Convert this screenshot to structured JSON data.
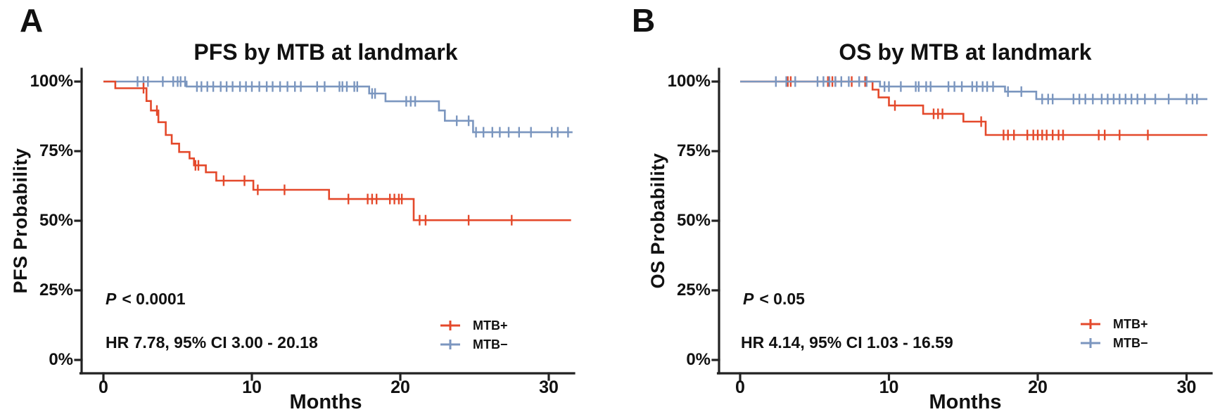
{
  "colors": {
    "mtb_plus": "#E4492B",
    "mtb_minus": "#7B96BF",
    "axis": "#222222"
  },
  "chart_data": [
    {
      "type": "line",
      "subtype": "kaplan-meier-step",
      "panel_label": "A",
      "title": "PFS by MTB at landmark",
      "xlabel": "Months",
      "ylabel": "PFS Probability",
      "xlim": [
        0,
        31.8
      ],
      "ylim": [
        0,
        100
      ],
      "grid": false,
      "legend_position": "lower right",
      "x_ticks": [
        {
          "value": 0,
          "label": "0"
        },
        {
          "value": 10,
          "label": "10"
        },
        {
          "value": 20,
          "label": "20"
        },
        {
          "value": 30,
          "label": "30"
        }
      ],
      "y_ticks": [
        {
          "value": 100,
          "label": "100%"
        },
        {
          "value": 75,
          "label": "75%"
        },
        {
          "value": 50,
          "label": "50%"
        },
        {
          "value": 25,
          "label": "25%"
        },
        {
          "value": 0,
          "label": "0%"
        }
      ],
      "annotation": {
        "p_label": "P",
        "p_rest": "< 0.0001",
        "hr_text": "HR 7.78, 95% CI 3.00 - 20.18"
      },
      "legend": [
        {
          "label": "MTB+"
        },
        {
          "label": "MTB−"
        }
      ],
      "series": [
        {
          "id": "pfs-mtb-minus",
          "name": "MTB−",
          "color": "#7B96BF",
          "end_t": 31.6,
          "levels": [
            {
              "t": 0,
              "p": 100
            },
            {
              "t": 5.6,
              "p": 98.2
            },
            {
              "t": 17.9,
              "p": 95.7
            },
            {
              "t": 19.0,
              "p": 92.9
            },
            {
              "t": 22.6,
              "p": 89.6
            },
            {
              "t": 23.0,
              "p": 85.9
            },
            {
              "t": 24.9,
              "p": 81.8
            }
          ],
          "censors": [
            [
              2.3,
              100
            ],
            [
              2.7,
              100
            ],
            [
              3.0,
              100
            ],
            [
              4.0,
              100
            ],
            [
              4.7,
              100
            ],
            [
              5.0,
              100
            ],
            [
              5.2,
              100
            ],
            [
              5.5,
              100
            ],
            [
              6.3,
              98.2
            ],
            [
              6.6,
              98.2
            ],
            [
              7.0,
              98.2
            ],
            [
              7.4,
              98.2
            ],
            [
              7.9,
              98.2
            ],
            [
              8.3,
              98.2
            ],
            [
              8.7,
              98.2
            ],
            [
              9.2,
              98.2
            ],
            [
              9.6,
              98.2
            ],
            [
              10.0,
              98.2
            ],
            [
              10.5,
              98.2
            ],
            [
              11.0,
              98.2
            ],
            [
              11.4,
              98.2
            ],
            [
              11.9,
              98.2
            ],
            [
              12.4,
              98.2
            ],
            [
              12.9,
              98.2
            ],
            [
              13.3,
              98.2
            ],
            [
              14.4,
              98.2
            ],
            [
              14.9,
              98.2
            ],
            [
              15.9,
              98.2
            ],
            [
              16.1,
              98.2
            ],
            [
              16.4,
              98.2
            ],
            [
              16.9,
              98.2
            ],
            [
              17.1,
              98.2
            ],
            [
              18.1,
              95.7
            ],
            [
              18.3,
              95.7
            ],
            [
              20.4,
              92.9
            ],
            [
              20.7,
              92.9
            ],
            [
              21.0,
              92.9
            ],
            [
              23.8,
              85.9
            ],
            [
              24.6,
              85.9
            ],
            [
              25.1,
              81.8
            ],
            [
              25.6,
              81.8
            ],
            [
              26.2,
              81.8
            ],
            [
              26.7,
              81.8
            ],
            [
              27.3,
              81.8
            ],
            [
              28.0,
              81.8
            ],
            [
              28.8,
              81.8
            ],
            [
              30.2,
              81.8
            ],
            [
              30.6,
              81.8
            ],
            [
              31.3,
              81.8
            ]
          ]
        },
        {
          "id": "pfs-mtb-plus",
          "name": "MTB+",
          "color": "#E4492B",
          "end_t": 31.5,
          "levels": [
            {
              "t": 0,
              "p": 100
            },
            {
              "t": 0.8,
              "p": 97.6
            },
            {
              "t": 2.9,
              "p": 93.0
            },
            {
              "t": 3.2,
              "p": 89.6
            },
            {
              "t": 3.7,
              "p": 85.4
            },
            {
              "t": 4.2,
              "p": 80.8
            },
            {
              "t": 4.6,
              "p": 77.7
            },
            {
              "t": 5.1,
              "p": 74.7
            },
            {
              "t": 5.8,
              "p": 72.4
            },
            {
              "t": 6.1,
              "p": 69.9
            },
            {
              "t": 6.9,
              "p": 67.4
            },
            {
              "t": 7.6,
              "p": 64.4
            },
            {
              "t": 10.1,
              "p": 61.1
            },
            {
              "t": 15.2,
              "p": 57.8
            },
            {
              "t": 20.9,
              "p": 50.2
            }
          ],
          "censors": [
            [
              2.7,
              97.6
            ],
            [
              3.6,
              89.6
            ],
            [
              6.2,
              69.9
            ],
            [
              6.4,
              69.9
            ],
            [
              8.1,
              64.4
            ],
            [
              9.5,
              64.4
            ],
            [
              10.4,
              61.1
            ],
            [
              12.2,
              61.1
            ],
            [
              16.5,
              57.8
            ],
            [
              17.8,
              57.8
            ],
            [
              18.1,
              57.8
            ],
            [
              18.4,
              57.8
            ],
            [
              19.3,
              57.8
            ],
            [
              19.6,
              57.8
            ],
            [
              19.9,
              57.8
            ],
            [
              20.1,
              57.8
            ],
            [
              21.3,
              50.2
            ],
            [
              21.7,
              50.2
            ],
            [
              24.6,
              50.2
            ],
            [
              27.5,
              50.2
            ]
          ]
        }
      ]
    },
    {
      "type": "line",
      "subtype": "kaplan-meier-step",
      "panel_label": "B",
      "title": "OS by MTB at landmark",
      "xlabel": "Months",
      "ylabel": "OS Probability",
      "xlim": [
        0,
        31.8
      ],
      "ylim": [
        0,
        100
      ],
      "grid": false,
      "legend_position": "lower right",
      "x_ticks": [
        {
          "value": 0,
          "label": "0"
        },
        {
          "value": 10,
          "label": "10"
        },
        {
          "value": 20,
          "label": "20"
        },
        {
          "value": 30,
          "label": "30"
        }
      ],
      "y_ticks": [
        {
          "value": 100,
          "label": "100%"
        },
        {
          "value": 75,
          "label": "75%"
        },
        {
          "value": 50,
          "label": "50%"
        },
        {
          "value": 25,
          "label": "25%"
        },
        {
          "value": 0,
          "label": "0%"
        }
      ],
      "annotation": {
        "p_label": "P",
        "p_rest": "< 0.05",
        "hr_text": "HR 4.14, 95% CI 1.03 - 16.59"
      },
      "legend": [
        {
          "label": "MTB+"
        },
        {
          "label": "MTB−"
        }
      ],
      "series": [
        {
          "id": "os-mtb-plus",
          "name": "MTB+",
          "color": "#E4492B",
          "end_t": 31.4,
          "levels": [
            {
              "t": 0,
              "p": 100
            },
            {
              "t": 8.9,
              "p": 97.1
            },
            {
              "t": 9.3,
              "p": 94.3
            },
            {
              "t": 10.0,
              "p": 91.4
            },
            {
              "t": 12.3,
              "p": 88.4
            },
            {
              "t": 15.0,
              "p": 85.6
            },
            {
              "t": 16.5,
              "p": 80.8
            }
          ],
          "censors": [
            [
              3.2,
              100
            ],
            [
              3.4,
              100
            ],
            [
              5.9,
              100
            ],
            [
              6.2,
              100
            ],
            [
              6.4,
              100
            ],
            [
              7.5,
              100
            ],
            [
              8.4,
              100
            ],
            [
              10.4,
              91.4
            ],
            [
              13.0,
              88.4
            ],
            [
              13.3,
              88.4
            ],
            [
              13.6,
              88.4
            ],
            [
              16.2,
              85.6
            ],
            [
              17.7,
              80.8
            ],
            [
              18.0,
              80.8
            ],
            [
              18.4,
              80.8
            ],
            [
              19.3,
              80.8
            ],
            [
              19.7,
              80.8
            ],
            [
              20.0,
              80.8
            ],
            [
              20.3,
              80.8
            ],
            [
              20.6,
              80.8
            ],
            [
              21.0,
              80.8
            ],
            [
              21.4,
              80.8
            ],
            [
              21.7,
              80.8
            ],
            [
              24.1,
              80.8
            ],
            [
              24.5,
              80.8
            ],
            [
              25.5,
              80.8
            ],
            [
              27.4,
              80.8
            ]
          ]
        },
        {
          "id": "os-mtb-minus",
          "name": "MTB−",
          "color": "#7B96BF",
          "end_t": 31.4,
          "levels": [
            {
              "t": 0,
              "p": 100
            },
            {
              "t": 9.4,
              "p": 98.2
            },
            {
              "t": 17.8,
              "p": 96.4
            },
            {
              "t": 19.9,
              "p": 93.7
            }
          ],
          "censors": [
            [
              2.4,
              100
            ],
            [
              3.1,
              100
            ],
            [
              3.7,
              100
            ],
            [
              5.2,
              100
            ],
            [
              5.6,
              100
            ],
            [
              6.0,
              100
            ],
            [
              6.4,
              100
            ],
            [
              6.8,
              100
            ],
            [
              7.3,
              100
            ],
            [
              8.0,
              100
            ],
            [
              8.5,
              100
            ],
            [
              9.7,
              98.2
            ],
            [
              10.0,
              98.2
            ],
            [
              10.8,
              98.2
            ],
            [
              11.8,
              98.2
            ],
            [
              12.0,
              98.2
            ],
            [
              12.5,
              98.2
            ],
            [
              12.8,
              98.2
            ],
            [
              14.0,
              98.2
            ],
            [
              14.4,
              98.2
            ],
            [
              14.9,
              98.2
            ],
            [
              15.6,
              98.2
            ],
            [
              15.9,
              98.2
            ],
            [
              16.3,
              98.2
            ],
            [
              16.6,
              98.2
            ],
            [
              17.0,
              98.2
            ],
            [
              18.0,
              96.4
            ],
            [
              18.9,
              96.4
            ],
            [
              20.3,
              93.7
            ],
            [
              20.7,
              93.7
            ],
            [
              21.0,
              93.7
            ],
            [
              22.4,
              93.7
            ],
            [
              22.8,
              93.7
            ],
            [
              23.2,
              93.7
            ],
            [
              23.7,
              93.7
            ],
            [
              24.3,
              93.7
            ],
            [
              24.7,
              93.7
            ],
            [
              25.1,
              93.7
            ],
            [
              25.5,
              93.7
            ],
            [
              25.9,
              93.7
            ],
            [
              26.3,
              93.7
            ],
            [
              26.7,
              93.7
            ],
            [
              27.2,
              93.7
            ],
            [
              27.9,
              93.7
            ],
            [
              28.8,
              93.7
            ],
            [
              30.0,
              93.7
            ],
            [
              30.4,
              93.7
            ],
            [
              30.7,
              93.7
            ]
          ]
        }
      ]
    }
  ]
}
